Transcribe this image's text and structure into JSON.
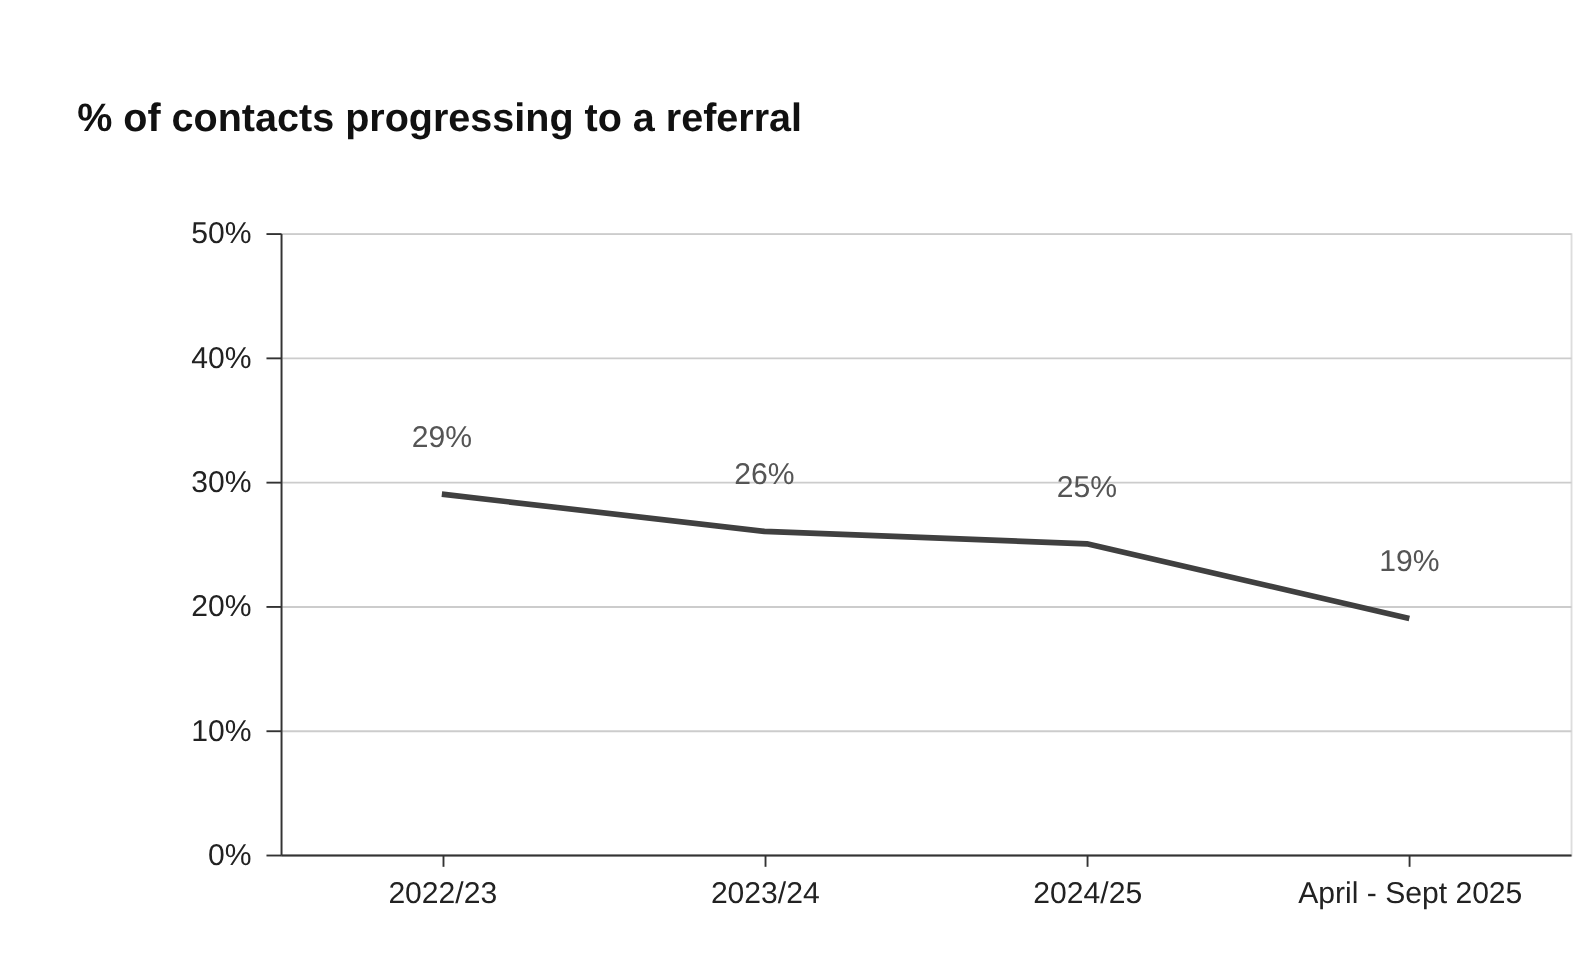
{
  "chart_data": {
    "type": "line",
    "title": "% of contacts progressing to a referral",
    "categories": [
      "2022/23",
      "2023/24",
      "2024/25",
      "April - Sept 2025"
    ],
    "series": [
      {
        "color": "#404040",
        "values": [
          29,
          26,
          25,
          19
        ],
        "value_labels": [
          "29%",
          "26%",
          "25%",
          "19%"
        ]
      }
    ],
    "ylim": [
      0,
      50
    ],
    "yticks": [
      {
        "value": 0,
        "label": "0%"
      },
      {
        "value": 10,
        "label": "10%"
      },
      {
        "value": 20,
        "label": "20%"
      },
      {
        "value": 30,
        "label": "30%"
      },
      {
        "value": 40,
        "label": "40%"
      },
      {
        "value": 50,
        "label": "50%"
      }
    ],
    "grid": "y",
    "marker": "none",
    "line_style": "solid"
  }
}
